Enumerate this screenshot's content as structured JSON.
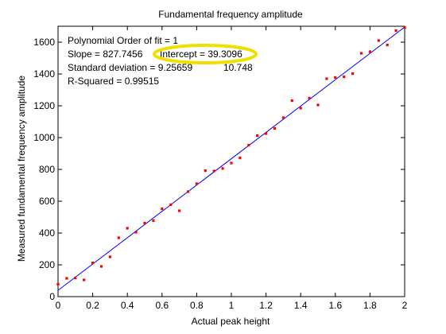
{
  "chart_data": {
    "type": "scatter",
    "title": "Fundamental frequency amplitude",
    "xlabel": "Actual peak height",
    "ylabel": "Measured fundamental frequency amplitude",
    "xlim": [
      0,
      2
    ],
    "ylim": [
      0,
      1700
    ],
    "x_ticks": [
      "0",
      "0.2",
      "0.4",
      "0.6",
      "0.8",
      "1",
      "1.2",
      "1.4",
      "1.6",
      "1.8",
      "2"
    ],
    "y_ticks": [
      "0",
      "200",
      "400",
      "600",
      "800",
      "1000",
      "1200",
      "1400",
      "1600"
    ],
    "grid": false,
    "series": [
      {
        "color": "#ff0000",
        "marker": "dot",
        "x": [
          0,
          0.05,
          0.1,
          0.15,
          0.2,
          0.25,
          0.3,
          0.35,
          0.4,
          0.45,
          0.5,
          0.55,
          0.6,
          0.65,
          0.7,
          0.75,
          0.8,
          0.85,
          0.9,
          0.95,
          1.0,
          1.05,
          1.1,
          1.15,
          1.2,
          1.25,
          1.3,
          1.35,
          1.4,
          1.45,
          1.5,
          1.55,
          1.6,
          1.65,
          1.7,
          1.75,
          1.8,
          1.85,
          1.9,
          1.95,
          2.0
        ],
        "y": [
          78,
          115,
          118,
          105,
          212,
          190,
          250,
          370,
          430,
          405,
          462,
          478,
          552,
          578,
          540,
          660,
          710,
          792,
          790,
          806,
          840,
          872,
          952,
          1012,
          1025,
          1058,
          1125,
          1232,
          1185,
          1248,
          1205,
          1370,
          1378,
          1382,
          1402,
          1530,
          1540,
          1610,
          1582,
          1672,
          1692
        ]
      }
    ],
    "fit_line": {
      "color": "#0000ff",
      "slope": 827.7456,
      "intercept": 39.3096
    },
    "annotations": [
      "Polynomial Order of fit = 1",
      "Slope = 827.7456",
      "Intercept = 39.3096",
      "Standard deviation = 9.25659",
      "10.748",
      "R-Squared = 0.99515"
    ],
    "highlight": {
      "target": "Intercept = 39.3096",
      "color": "#f0e000",
      "shape": "ellipse"
    }
  }
}
